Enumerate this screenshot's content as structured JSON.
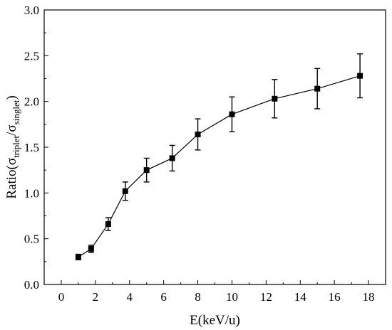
{
  "chart_data": {
    "type": "line",
    "title": "",
    "xlabel": "E(keV/u)",
    "ylabel": {
      "prefix": "Ratio(σ",
      "sub1": "triplet",
      "mid": "/σ",
      "sub2": "singlet",
      "suffix": ")"
    },
    "xlim": [
      -1,
      19
    ],
    "ylim": [
      0.0,
      3.0
    ],
    "xticks": [
      0,
      2,
      4,
      6,
      8,
      10,
      12,
      14,
      16,
      18
    ],
    "yticks": [
      0.0,
      0.5,
      1.0,
      1.5,
      2.0,
      2.5,
      3.0
    ],
    "ytick_labels": [
      "0.0",
      "0.5",
      "1.0",
      "1.5",
      "2.0",
      "2.5",
      "3.0"
    ],
    "grid": false,
    "legend": "none",
    "series": [
      {
        "marker": "square",
        "color": "#000000",
        "x": [
          1.0,
          1.75,
          2.75,
          3.75,
          5.0,
          6.5,
          8.0,
          10.0,
          12.5,
          15.0,
          17.5
        ],
        "y": [
          0.3,
          0.39,
          0.66,
          1.02,
          1.25,
          1.38,
          1.64,
          1.86,
          2.03,
          2.14,
          2.28
        ],
        "yerr": [
          0.03,
          0.04,
          0.07,
          0.1,
          0.13,
          0.14,
          0.17,
          0.19,
          0.21,
          0.22,
          0.24
        ]
      }
    ]
  }
}
